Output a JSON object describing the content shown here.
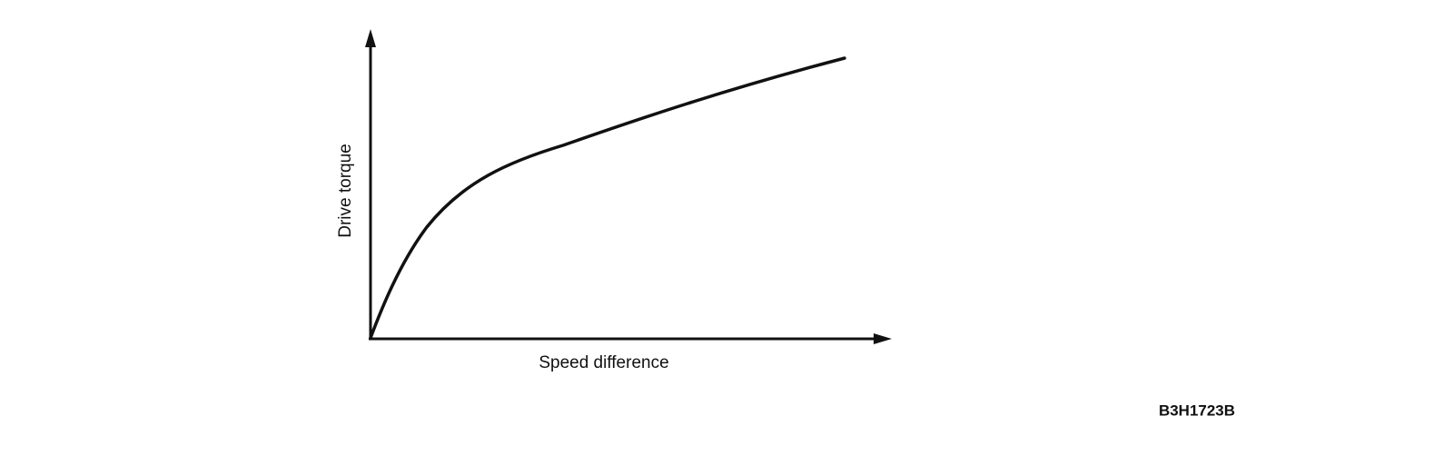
{
  "axes": {
    "y_label": "Drive torque",
    "x_label": "Speed difference"
  },
  "figure_id": "B3H1723B"
}
